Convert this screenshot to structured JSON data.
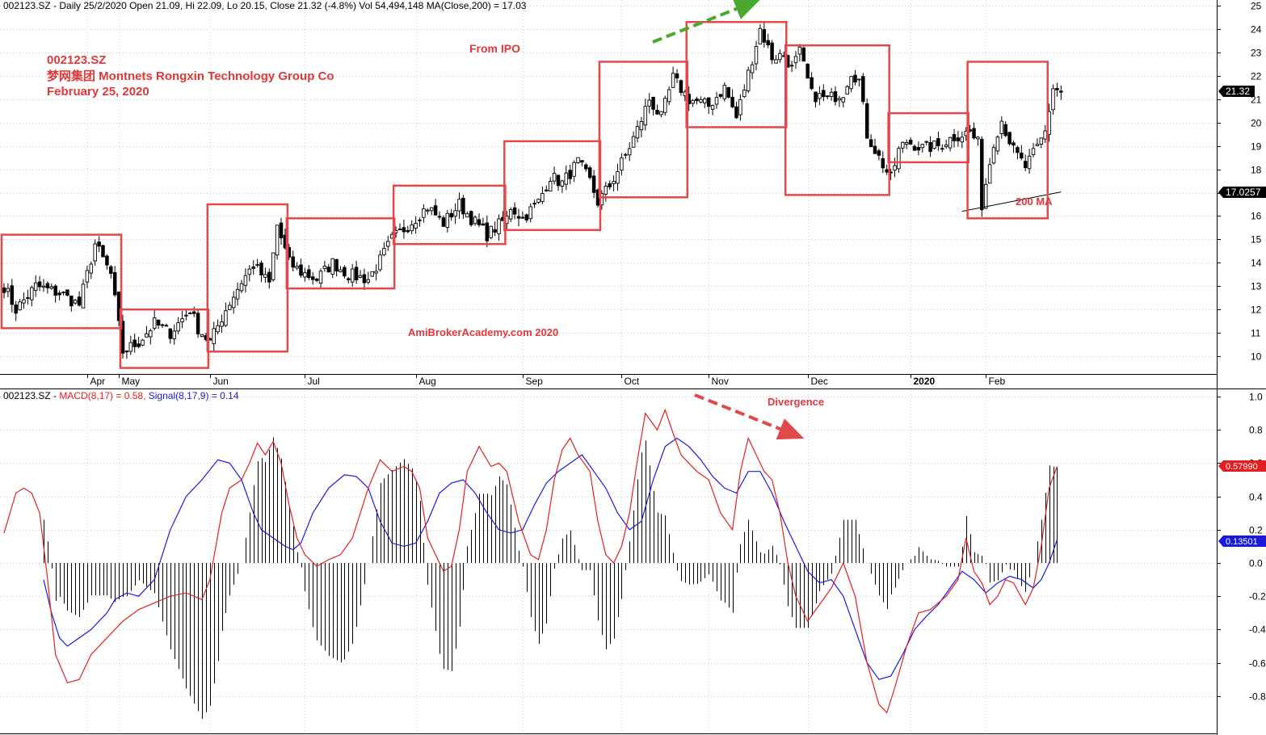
{
  "header": {
    "price_info": "002123.SZ - Daily 25/2/2020 Open 21.09, Hi 22.09, Lo 20.15, Close 21.32 (-4.8%) Vol 54,494,148 MA(Close,200) = 17.03",
    "macd_prefix": "002123.SZ - ",
    "macd_label": "MACD(8,17) = 0.58, ",
    "signal_label": "Signal(8,17,9) = 0.14"
  },
  "annotations": {
    "ticker": "002123.SZ",
    "company": "梦网集团 Montnets Rongxin Technology Group Co",
    "date": "February 25, 2020",
    "from_ipo": "From IPO",
    "watermark": "AmiBrokerAcademy.com   2020",
    "ma_label": "200 MA",
    "divergence": "Divergence"
  },
  "colors": {
    "box": "#e04a4a",
    "macd": "#e02020",
    "signal": "#1a1adc",
    "arrow_up": "#4aa82e",
    "arrow_down": "#e04a4a"
  },
  "chart_data": [
    {
      "type": "candlestick",
      "title": "002123.SZ Daily",
      "months": [
        "Apr",
        "May",
        "Jun",
        "Jul",
        "Aug",
        "Sep",
        "Oct",
        "Nov",
        "Dec",
        "2020",
        "Feb"
      ],
      "ylim": [
        9,
        25
      ],
      "yticks": [
        10,
        11,
        12,
        13,
        14,
        15,
        16,
        17,
        18,
        19,
        20,
        21,
        22,
        23,
        24,
        25
      ],
      "last_close": "21.32",
      "ma200_value": "17.0257",
      "ma200_start": 16.2,
      "ma200_end": 17.03,
      "anchors": [
        [
          0,
          13.0
        ],
        [
          3,
          12.0
        ],
        [
          8,
          13.0
        ],
        [
          14,
          12.7
        ],
        [
          19,
          12.2
        ],
        [
          23,
          14.8
        ],
        [
          27,
          13.5
        ],
        [
          30,
          10.2
        ],
        [
          34,
          10.6
        ],
        [
          38,
          11.4
        ],
        [
          42,
          11.0
        ],
        [
          47,
          12.0
        ],
        [
          49,
          11.2
        ],
        [
          52,
          10.6
        ],
        [
          56,
          12.0
        ],
        [
          60,
          13.2
        ],
        [
          63,
          13.9
        ],
        [
          67,
          13.1
        ],
        [
          69,
          15.6
        ],
        [
          72,
          14.0
        ],
        [
          75,
          13.6
        ],
        [
          79,
          13.3
        ],
        [
          83,
          14.0
        ],
        [
          87,
          13.5
        ],
        [
          92,
          13.3
        ],
        [
          95,
          14.1
        ],
        [
          98,
          15.0
        ],
        [
          102,
          15.6
        ],
        [
          107,
          16.4
        ],
        [
          111,
          15.7
        ],
        [
          115,
          16.5
        ],
        [
          118,
          15.9
        ],
        [
          122,
          15.2
        ],
        [
          127,
          15.9
        ],
        [
          128,
          16.4
        ],
        [
          131,
          15.9
        ],
        [
          135,
          16.6
        ],
        [
          138,
          17.7
        ],
        [
          141,
          17.4
        ],
        [
          145,
          18.3
        ],
        [
          148,
          17.5
        ],
        [
          150,
          16.6
        ],
        [
          153,
          17.3
        ],
        [
          157,
          18.6
        ],
        [
          160,
          19.7
        ],
        [
          163,
          21.0
        ],
        [
          166,
          20.2
        ],
        [
          169,
          21.9
        ],
        [
          173,
          21.0
        ],
        [
          175,
          20.9
        ],
        [
          178,
          20.7
        ],
        [
          182,
          21.5
        ],
        [
          185,
          20.2
        ],
        [
          188,
          22.1
        ],
        [
          191,
          24.0
        ],
        [
          194,
          22.8
        ],
        [
          197,
          22.9
        ],
        [
          199,
          22.3
        ],
        [
          201,
          23.0
        ],
        [
          204,
          21.2
        ],
        [
          208,
          21.0
        ],
        [
          212,
          21.3
        ],
        [
          214,
          22.2
        ],
        [
          216,
          21.8
        ],
        [
          218,
          19.5
        ],
        [
          221,
          18.5
        ],
        [
          224,
          17.6
        ],
        [
          226,
          18.8
        ],
        [
          228,
          19.2
        ],
        [
          232,
          18.9
        ],
        [
          236,
          19.0
        ],
        [
          240,
          19.4
        ],
        [
          244,
          19.6
        ],
        [
          246,
          19.1
        ],
        [
          247,
          16.5
        ],
        [
          250,
          19.2
        ],
        [
          252,
          20.1
        ],
        [
          255,
          18.8
        ],
        [
          258,
          18.1
        ],
        [
          261,
          18.9
        ],
        [
          263,
          19.6
        ],
        [
          265,
          21.5
        ],
        [
          267,
          21.3
        ]
      ],
      "boxes": [
        {
          "from": 0,
          "to": 29,
          "lo": 11.2,
          "hi": 15.2
        },
        {
          "from": 30,
          "to": 51,
          "lo": 9.5,
          "hi": 12.0
        },
        {
          "from": 52,
          "to": 71,
          "lo": 10.2,
          "hi": 16.5
        },
        {
          "from": 72,
          "to": 98,
          "lo": 12.9,
          "hi": 15.9
        },
        {
          "from": 99,
          "to": 126,
          "lo": 14.8,
          "hi": 17.3
        },
        {
          "from": 127,
          "to": 150,
          "lo": 15.4,
          "hi": 19.2
        },
        {
          "from": 151,
          "to": 172,
          "lo": 16.8,
          "hi": 22.6
        },
        {
          "from": 173,
          "to": 197,
          "lo": 19.8,
          "hi": 24.3
        },
        {
          "from": 198,
          "to": 223,
          "lo": 16.9,
          "hi": 23.3
        },
        {
          "from": 224,
          "to": 243,
          "lo": 18.3,
          "hi": 20.4
        },
        {
          "from": 244,
          "to": 263,
          "lo": 15.9,
          "hi": 22.6
        }
      ]
    },
    {
      "type": "line",
      "title": "MACD(8,17)",
      "ylim": [
        -1.0,
        1.0
      ],
      "yticks": [
        -0.8,
        -0.6,
        -0.4,
        -0.2,
        0.0,
        0.2,
        0.4,
        0.6,
        0.8,
        1.0
      ],
      "macd_value": "0.57990",
      "signal_value": "0.13501",
      "series": [
        {
          "name": "MACD(8,17)",
          "x": [
            0,
            3,
            5,
            7,
            9,
            11,
            13,
            16,
            19,
            22,
            26,
            30,
            34,
            38,
            42,
            46,
            50,
            52,
            55,
            57,
            60,
            62,
            64,
            66,
            68,
            70,
            72,
            74,
            76,
            79,
            82,
            85,
            88,
            92,
            95,
            98,
            101,
            103,
            105,
            107,
            109,
            111,
            113,
            115,
            117,
            120,
            123,
            125,
            127,
            130,
            133,
            135,
            137,
            139,
            141,
            143,
            145,
            148,
            150,
            152,
            154,
            156,
            158,
            160,
            162,
            165,
            167,
            169,
            171,
            173,
            175,
            178,
            181,
            184,
            186,
            188,
            190,
            192,
            194,
            196,
            198,
            200,
            203,
            206,
            209,
            212,
            215,
            218,
            221,
            223,
            225,
            228,
            231,
            234,
            238,
            241,
            243,
            245,
            247,
            249,
            251,
            253,
            255,
            258,
            260,
            262,
            264,
            266
          ],
          "values": [
            0.18,
            0.42,
            0.45,
            0.42,
            0.3,
            -0.1,
            -0.55,
            -0.72,
            -0.7,
            -0.55,
            -0.45,
            -0.35,
            -0.28,
            -0.24,
            -0.2,
            -0.18,
            -0.22,
            -0.1,
            0.3,
            0.45,
            0.5,
            0.6,
            0.72,
            0.65,
            0.73,
            0.6,
            0.35,
            0.15,
            0.05,
            -0.02,
            0.02,
            0.05,
            0.15,
            0.45,
            0.62,
            0.55,
            0.58,
            0.55,
            0.45,
            0.15,
            0.05,
            -0.05,
            -0.02,
            0.2,
            0.55,
            0.7,
            0.58,
            0.6,
            0.55,
            0.25,
            0.05,
            0.02,
            0.2,
            0.5,
            0.68,
            0.75,
            0.65,
            0.55,
            0.25,
            0.05,
            0.0,
            0.1,
            0.3,
            0.62,
            0.9,
            0.8,
            0.92,
            0.78,
            0.65,
            0.6,
            0.55,
            0.5,
            0.3,
            0.2,
            0.55,
            0.75,
            0.65,
            0.55,
            0.5,
            0.3,
            0.0,
            -0.2,
            -0.35,
            -0.25,
            -0.15,
            0.0,
            -0.2,
            -0.6,
            -0.85,
            -0.9,
            -0.75,
            -0.5,
            -0.3,
            -0.28,
            -0.2,
            -0.1,
            0.15,
            -0.05,
            -0.12,
            -0.25,
            -0.2,
            -0.1,
            -0.12,
            -0.25,
            -0.15,
            0.1,
            0.45,
            0.58
          ]
        },
        {
          "name": "Signal(8,17,9)",
          "x": [
            10,
            12,
            14,
            16,
            19,
            22,
            26,
            28,
            31,
            34,
            38,
            42,
            46,
            50,
            54,
            57,
            60,
            63,
            65,
            68,
            71,
            73,
            75,
            78,
            82,
            86,
            89,
            92,
            95,
            98,
            101,
            104,
            107,
            110,
            113,
            116,
            119,
            122,
            125,
            128,
            131,
            134,
            137,
            140,
            143,
            146,
            149,
            152,
            155,
            158,
            161,
            164,
            167,
            170,
            173,
            176,
            179,
            182,
            185,
            188,
            191,
            194,
            197,
            200,
            203,
            206,
            209,
            212,
            215,
            218,
            221,
            224,
            227,
            230,
            233,
            236,
            239,
            242,
            245,
            248,
            251,
            254,
            257,
            260,
            262,
            264,
            266
          ],
          "values": [
            -0.1,
            -0.3,
            -0.45,
            -0.5,
            -0.45,
            -0.4,
            -0.3,
            -0.22,
            -0.18,
            -0.2,
            -0.1,
            0.2,
            0.4,
            0.5,
            0.62,
            0.6,
            0.5,
            0.3,
            0.2,
            0.15,
            0.1,
            0.08,
            0.12,
            0.3,
            0.45,
            0.53,
            0.52,
            0.45,
            0.25,
            0.12,
            0.1,
            0.12,
            0.25,
            0.42,
            0.48,
            0.5,
            0.42,
            0.3,
            0.2,
            0.18,
            0.2,
            0.35,
            0.48,
            0.55,
            0.6,
            0.65,
            0.55,
            0.45,
            0.3,
            0.2,
            0.25,
            0.5,
            0.7,
            0.75,
            0.7,
            0.62,
            0.52,
            0.45,
            0.42,
            0.55,
            0.55,
            0.42,
            0.25,
            0.1,
            -0.05,
            -0.12,
            -0.1,
            -0.2,
            -0.4,
            -0.6,
            -0.7,
            -0.68,
            -0.55,
            -0.4,
            -0.32,
            -0.25,
            -0.15,
            -0.05,
            -0.1,
            -0.18,
            -0.12,
            -0.08,
            -0.1,
            -0.15,
            -0.1,
            0.0,
            0.14
          ]
        }
      ]
    }
  ]
}
